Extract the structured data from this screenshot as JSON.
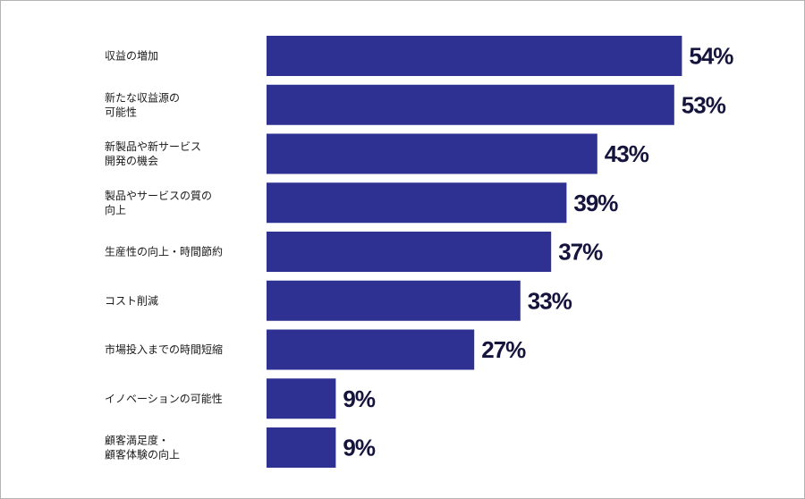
{
  "chart_data": {
    "type": "bar",
    "orientation": "horizontal",
    "categories": [
      [
        "収益の増加"
      ],
      [
        "新たな収益源の",
        "可能性"
      ],
      [
        "新製品や新サービス",
        "開発の機会"
      ],
      [
        "製品やサービスの質の",
        "向上"
      ],
      [
        "生産性の向上・時間節約"
      ],
      [
        "コスト削減"
      ],
      [
        "市場投入までの時間短縮"
      ],
      [
        "イノベーションの可能性"
      ],
      [
        "顧客満足度・",
        "顧客体験の向上"
      ]
    ],
    "values": [
      54,
      53,
      43,
      39,
      37,
      33,
      27,
      9,
      9
    ],
    "value_labels": [
      "54%",
      "53%",
      "43%",
      "39%",
      "37%",
      "33%",
      "27%",
      "9%",
      "9%"
    ],
    "bar_color": "#2e3191",
    "label_color": "#14143c",
    "grid": false,
    "legend": "none",
    "title": "",
    "xlabel": "",
    "ylabel": ""
  }
}
